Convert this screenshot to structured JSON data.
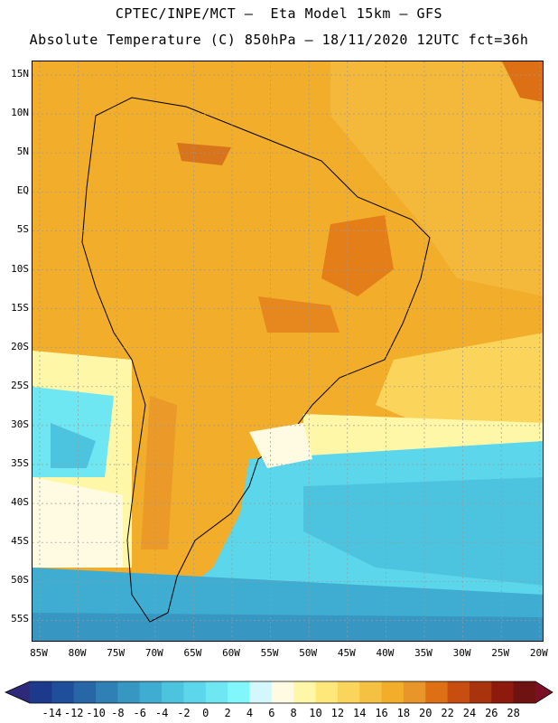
{
  "header": {
    "line1": "CPTEC/INPE/MCT –  Eta Model 15km – GFS",
    "line2": "Absolute Temperature (C) 850hPa – 18/11/2020 12UTC fct=36h"
  },
  "axes": {
    "lat_labels": [
      "15N",
      "10N",
      "5N",
      "EQ",
      "5S",
      "10S",
      "15S",
      "20S",
      "25S",
      "30S",
      "35S",
      "40S",
      "45S",
      "50S",
      "55S"
    ],
    "lon_labels": [
      "85W",
      "80W",
      "75W",
      "70W",
      "65W",
      "60W",
      "55W",
      "50W",
      "45W",
      "40W",
      "35W",
      "30W",
      "25W",
      "20W"
    ]
  },
  "colorbar": {
    "labels": [
      "-14",
      "-12",
      "-10",
      "-8",
      "-6",
      "-4",
      "-2",
      "0",
      "2",
      "4",
      "6",
      "8",
      "10",
      "12",
      "14",
      "16",
      "18",
      "20",
      "22",
      "24",
      "26",
      "28"
    ],
    "colors": [
      "#1b3a8c",
      "#1f4f9a",
      "#2767a8",
      "#2f80b5",
      "#3896c2",
      "#3fadd1",
      "#4cc4e0",
      "#5cd6ea",
      "#6ee7f3",
      "#7ff7fb",
      "#d3f7fb",
      "#fffbe3",
      "#fff7a8",
      "#ffe87a",
      "#fbd45c",
      "#f4c143",
      "#f2ad2b",
      "#e8952a",
      "#dd6f14",
      "#c74e10",
      "#a8330c",
      "#8c1a0d",
      "#6e1212"
    ],
    "end_left": "#2d2a7a",
    "end_right": "#7a0f26"
  },
  "colors": {
    "background": "#ffffff",
    "land_dominant": "#f2ad2b",
    "ocean_cold": "#4cc4e0"
  }
}
